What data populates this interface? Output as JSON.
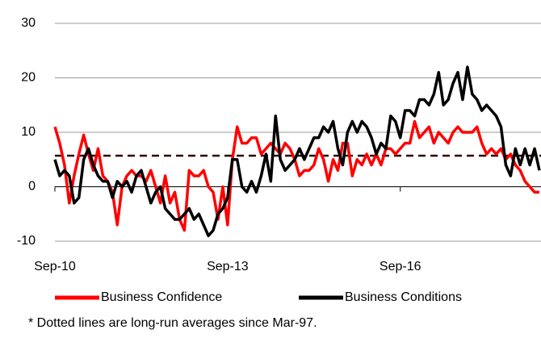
{
  "chart_data": {
    "type": "line",
    "categories": [
      "Sep-10",
      null,
      null,
      null,
      null,
      null,
      null,
      null,
      null,
      null,
      null,
      null,
      null,
      null,
      null,
      null,
      null,
      null,
      null,
      null,
      null,
      null,
      null,
      null,
      null,
      null,
      null,
      null,
      null,
      null,
      null,
      null,
      null,
      null,
      null,
      null,
      "Sep-13",
      null,
      null,
      null,
      null,
      null,
      null,
      null,
      null,
      null,
      null,
      null,
      null,
      null,
      null,
      null,
      null,
      null,
      null,
      null,
      null,
      null,
      null,
      null,
      null,
      null,
      null,
      null,
      null,
      null,
      null,
      null,
      null,
      null,
      null,
      null,
      "Sep-16",
      null,
      null,
      null,
      null,
      null,
      null,
      null,
      null,
      null,
      null,
      null,
      null,
      null,
      null,
      null,
      null,
      null,
      null,
      null,
      null,
      null,
      null,
      null,
      null,
      null,
      null,
      null,
      null,
      null
    ],
    "series": [
      {
        "name": "Business Confidence",
        "color": "#ff0000",
        "values": [
          11,
          8,
          4,
          -3,
          2,
          6,
          9.5,
          6,
          3,
          7,
          2,
          1,
          -1,
          -7,
          0,
          2,
          3,
          2,
          2,
          1,
          3,
          0,
          -3,
          2,
          -3,
          -1,
          -6,
          -8,
          3,
          2,
          2,
          3,
          0,
          -1,
          -6,
          0,
          -7,
          5,
          11,
          8,
          8,
          9,
          9,
          6,
          7,
          8,
          7,
          6,
          8,
          7,
          5,
          2,
          3,
          3,
          4,
          7,
          5,
          1,
          5,
          3,
          8,
          8,
          2,
          5,
          4,
          6,
          4,
          6,
          4,
          7,
          7,
          6,
          7,
          8,
          8,
          12,
          9,
          10,
          11,
          8,
          10,
          9,
          8,
          10,
          11,
          10,
          10,
          10,
          11,
          8,
          6,
          7,
          6,
          7,
          5,
          6,
          4,
          3,
          1,
          0,
          -1,
          -1
        ]
      },
      {
        "name": "Business Conditions",
        "color": "#000000",
        "values": [
          5,
          2,
          3,
          2,
          -3,
          -2,
          5,
          7,
          4,
          2,
          1,
          1,
          -2,
          1,
          0,
          1,
          -1,
          2,
          3,
          0,
          -3,
          -1,
          0,
          -4,
          -5,
          -6,
          -6,
          -5,
          -4,
          -6,
          -5,
          -7,
          -9,
          -8,
          -5,
          -4,
          -2,
          5,
          5,
          0,
          -1,
          1,
          -1,
          2,
          6,
          1,
          13,
          5,
          3,
          4,
          5,
          7,
          5,
          7,
          9,
          9,
          11,
          10,
          12,
          7,
          4,
          10,
          12,
          10,
          12,
          11,
          9,
          6,
          8,
          7,
          13,
          12,
          9,
          14,
          14,
          13,
          16,
          16,
          15,
          17,
          21,
          15,
          16,
          19,
          21,
          16,
          22,
          17,
          16,
          14,
          15,
          14,
          13,
          11,
          4,
          2,
          7,
          4,
          7,
          4,
          7,
          3
        ]
      }
    ],
    "average_lines": [
      {
        "value": 5.7,
        "color": "#2a0000"
      }
    ],
    "ylim": [
      -10,
      30
    ],
    "yticks": [
      -10,
      0,
      10,
      20,
      30
    ],
    "grid": true,
    "note": "* Dotted lines are long-run  averages since Mar-97."
  }
}
